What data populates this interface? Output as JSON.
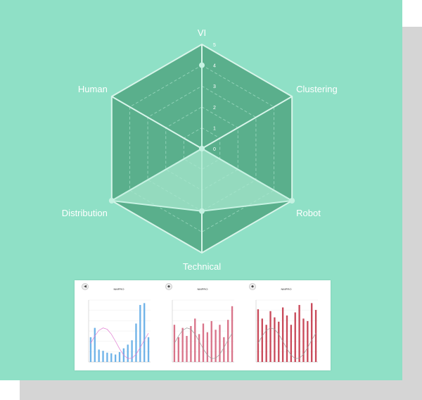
{
  "chart_data": {
    "type": "radar",
    "axes": [
      "VI",
      "Clustering",
      "Robot",
      "Technical",
      "Distribution",
      "Human"
    ],
    "values": [
      4,
      0,
      5,
      3,
      5,
      0
    ],
    "rlim": [
      0,
      5
    ],
    "ticks": [
      "0",
      "1",
      "2",
      "3",
      "4",
      "5"
    ],
    "grid": true,
    "colors": {
      "background": "#8fe0c6",
      "hexagon": "#5aaf8c",
      "series_fill": "#a8e8cf",
      "series_stroke": "#c6f2e2"
    }
  },
  "thumbnails": [
    {
      "title": "NMPRO",
      "button": "◀",
      "color": "#6fb3e8"
    },
    {
      "title": "NMPRO",
      "button": "◆",
      "color": "#d9748a"
    },
    {
      "title": "NMPRO",
      "button": "◆",
      "color": "#c94a5a"
    }
  ]
}
